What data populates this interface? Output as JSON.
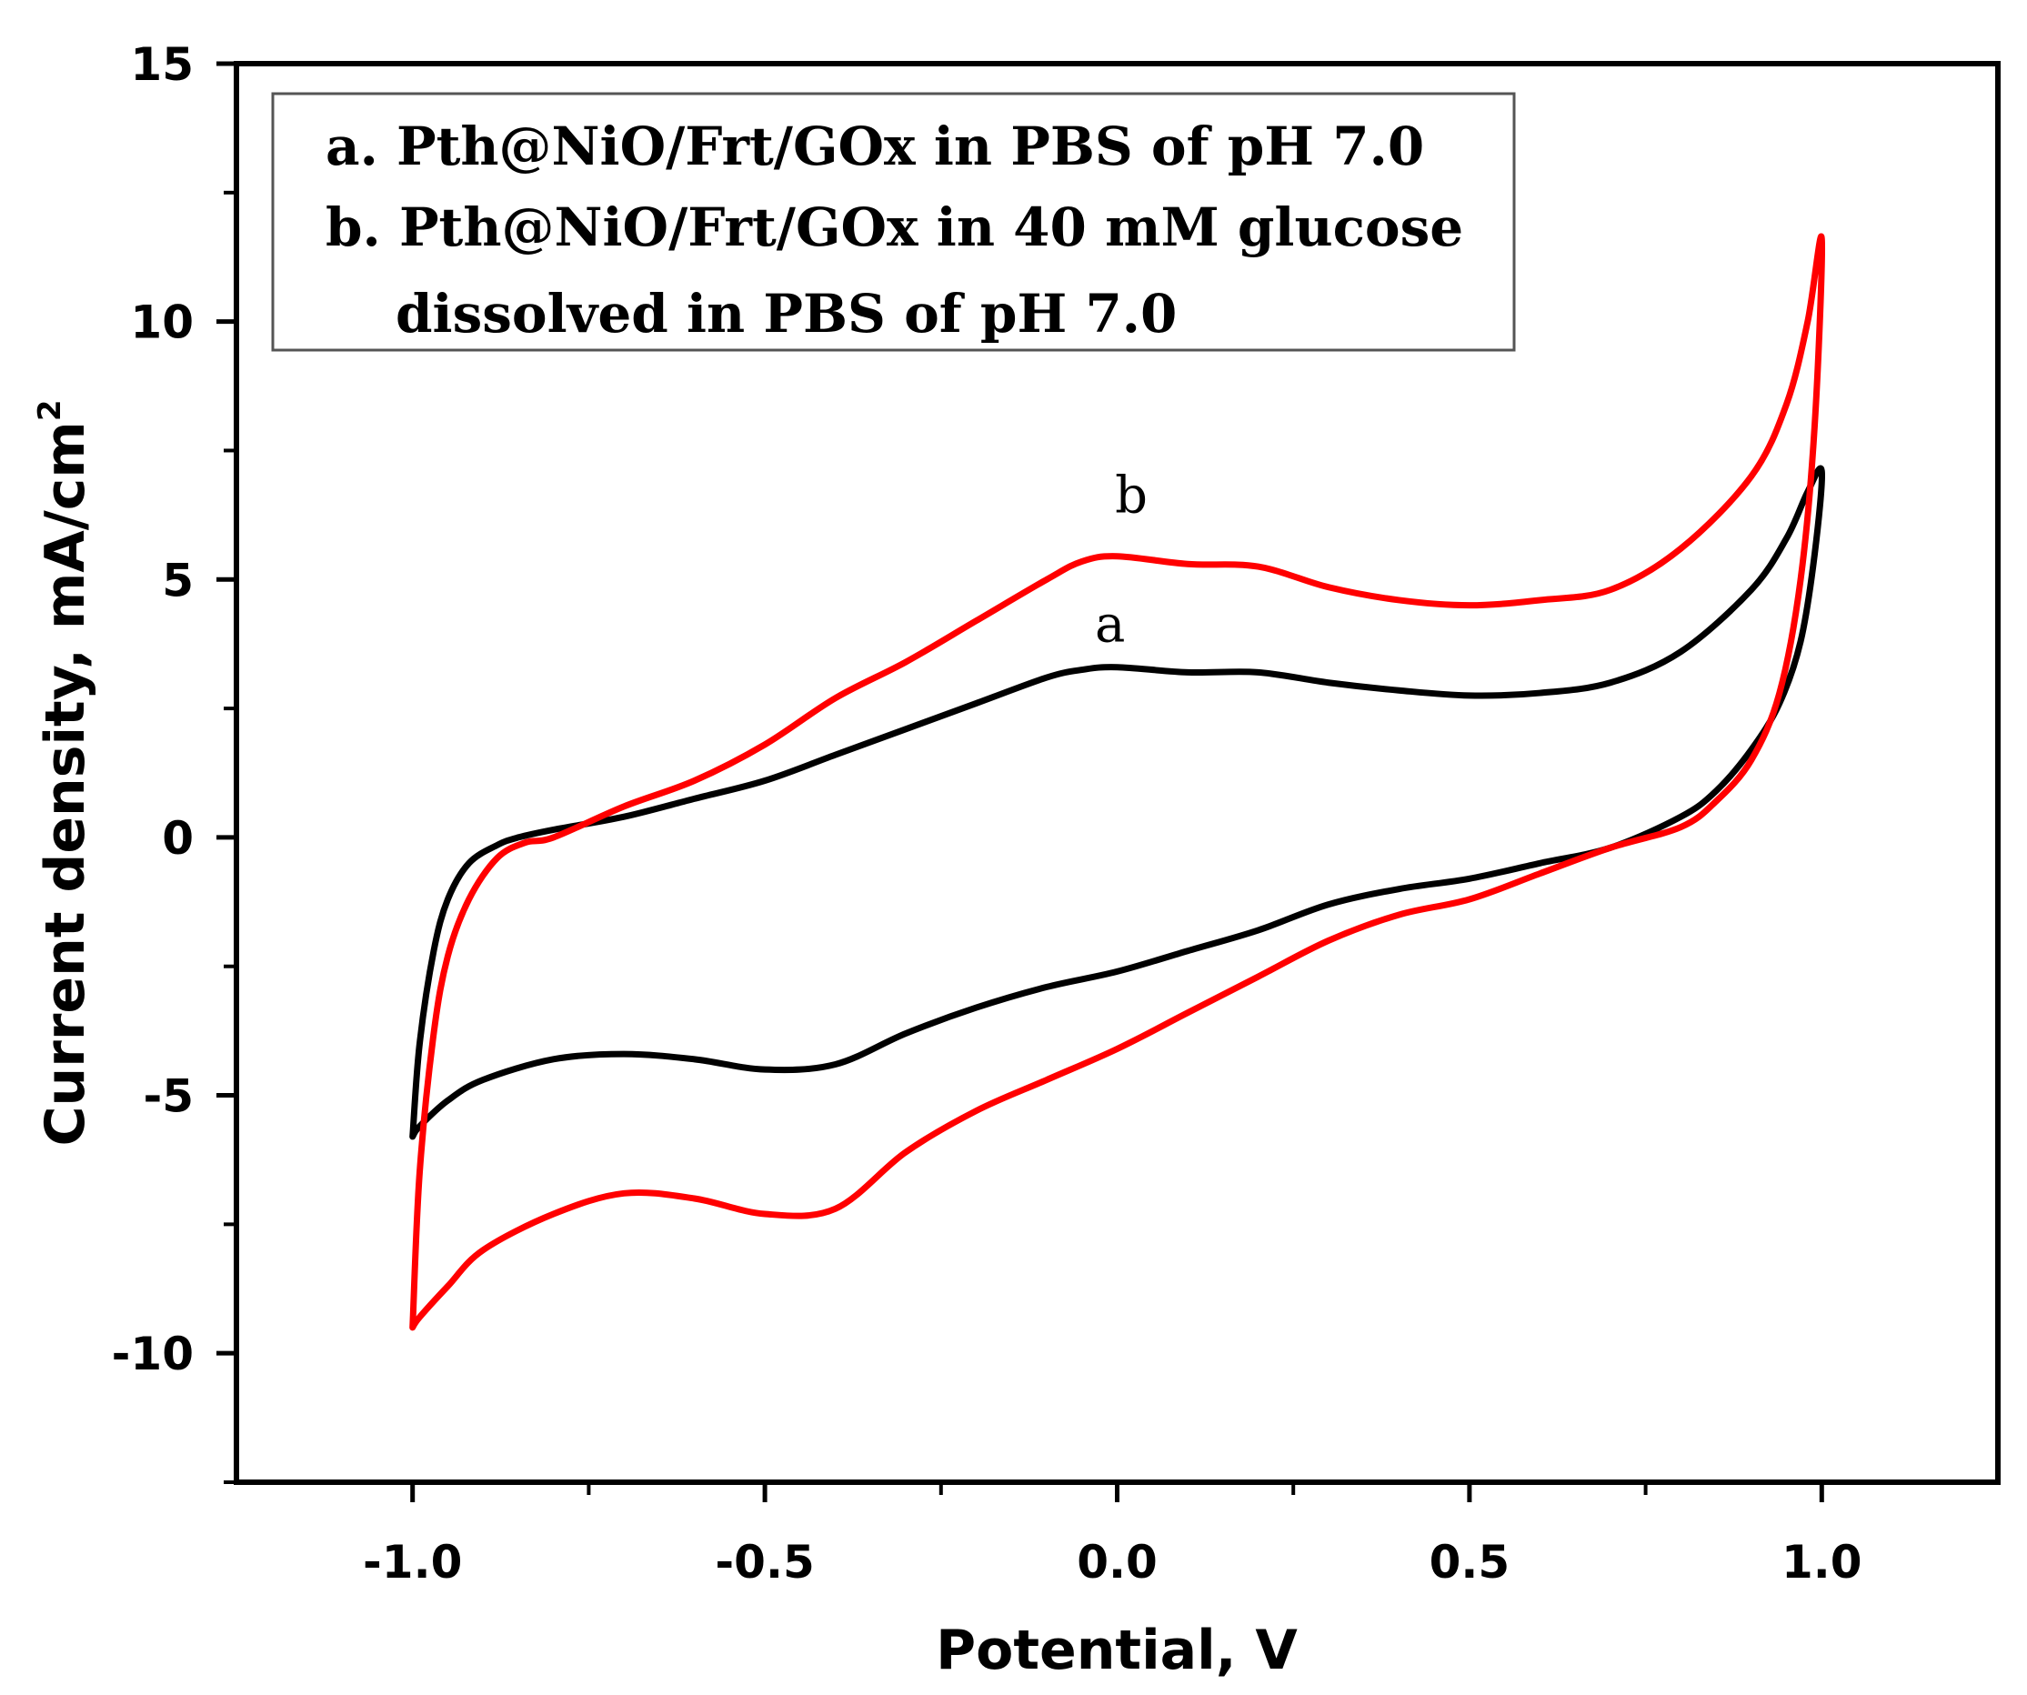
{
  "chart_data": {
    "type": "line",
    "title": "",
    "xlabel": "Potential, V",
    "ylabel": "Current density, mA/cm",
    "ylabel_superscript": "2",
    "xlim": [
      -1.25,
      1.25
    ],
    "ylim": [
      -12.5,
      15
    ],
    "x_ticks": [
      -1.0,
      -0.5,
      0.0,
      0.5,
      1.0
    ],
    "x_tick_labels": [
      "-1.0",
      "-0.5",
      "0.0",
      "0.5",
      "1.0"
    ],
    "y_ticks": [
      -10,
      -5,
      0,
      5,
      10,
      15
    ],
    "y_tick_labels": [
      "-10",
      "-5",
      "0",
      "5",
      "10",
      "15"
    ],
    "legend": {
      "placement": "top-left",
      "lines": [
        "a. Pth@NiO/Frt/GOx in PBS of pH 7.0",
        "b. Pth@NiO/Frt/GOx in 40 mM glucose",
        "dissolved in PBS of pH 7.0"
      ]
    },
    "series": [
      {
        "name": "a",
        "color": "#000000",
        "label_at": [
          -0.01,
          3.8
        ],
        "x": [
          -1.0,
          -0.99,
          -0.97,
          -0.95,
          -0.92,
          -0.88,
          -0.85,
          -0.8,
          -0.7,
          -0.6,
          -0.5,
          -0.4,
          -0.3,
          -0.2,
          -0.1,
          -0.05,
          0.0,
          0.1,
          0.2,
          0.3,
          0.4,
          0.5,
          0.6,
          0.7,
          0.8,
          0.9,
          0.95,
          0.98,
          1.0,
          0.99,
          0.97,
          0.94,
          0.9,
          0.85,
          0.8,
          0.7,
          0.6,
          0.5,
          0.4,
          0.3,
          0.2,
          0.1,
          0.0,
          -0.1,
          -0.2,
          -0.3,
          -0.4,
          -0.5,
          -0.6,
          -0.7,
          -0.8,
          -0.9,
          -0.95,
          -0.99,
          -1.0
        ],
        "y": [
          -5.8,
          -4.0,
          -2.2,
          -1.2,
          -0.5,
          -0.15,
          0.0,
          0.15,
          0.4,
          0.75,
          1.1,
          1.6,
          2.1,
          2.6,
          3.1,
          3.25,
          3.3,
          3.2,
          3.2,
          3.0,
          2.85,
          2.75,
          2.8,
          3.0,
          3.6,
          4.8,
          5.8,
          6.7,
          7.1,
          5.5,
          3.8,
          2.6,
          1.7,
          0.9,
          0.4,
          -0.2,
          -0.5,
          -0.8,
          -1.0,
          -1.3,
          -1.8,
          -2.2,
          -2.6,
          -2.9,
          -3.3,
          -3.8,
          -4.4,
          -4.5,
          -4.3,
          -4.2,
          -4.3,
          -4.7,
          -5.1,
          -5.6,
          -5.8
        ]
      },
      {
        "name": "b",
        "color": "#ff0000",
        "label_at": [
          0.02,
          6.3
        ],
        "x": [
          -1.0,
          -0.99,
          -0.97,
          -0.95,
          -0.92,
          -0.88,
          -0.84,
          -0.8,
          -0.7,
          -0.6,
          -0.5,
          -0.4,
          -0.3,
          -0.2,
          -0.1,
          -0.05,
          0.0,
          0.1,
          0.2,
          0.3,
          0.4,
          0.5,
          0.6,
          0.7,
          0.8,
          0.9,
          0.95,
          0.98,
          1.0,
          0.99,
          0.97,
          0.94,
          0.9,
          0.85,
          0.8,
          0.7,
          0.6,
          0.5,
          0.4,
          0.3,
          0.2,
          0.1,
          0.0,
          -0.1,
          -0.2,
          -0.3,
          -0.4,
          -0.5,
          -0.6,
          -0.7,
          -0.8,
          -0.9,
          -0.95,
          -0.99,
          -1.0
        ],
        "y": [
          -9.5,
          -6.5,
          -3.8,
          -2.3,
          -1.2,
          -0.4,
          -0.1,
          0.0,
          0.6,
          1.1,
          1.8,
          2.7,
          3.4,
          4.2,
          5.0,
          5.35,
          5.45,
          5.3,
          5.25,
          4.85,
          4.6,
          4.5,
          4.6,
          4.8,
          5.6,
          7.0,
          8.4,
          10.0,
          11.6,
          8.0,
          5.0,
          2.8,
          1.5,
          0.7,
          0.2,
          -0.2,
          -0.7,
          -1.2,
          -1.5,
          -2.0,
          -2.7,
          -3.4,
          -4.1,
          -4.7,
          -5.3,
          -6.1,
          -7.2,
          -7.3,
          -7.0,
          -6.9,
          -7.3,
          -8.0,
          -8.7,
          -9.3,
          -9.5
        ]
      }
    ]
  }
}
